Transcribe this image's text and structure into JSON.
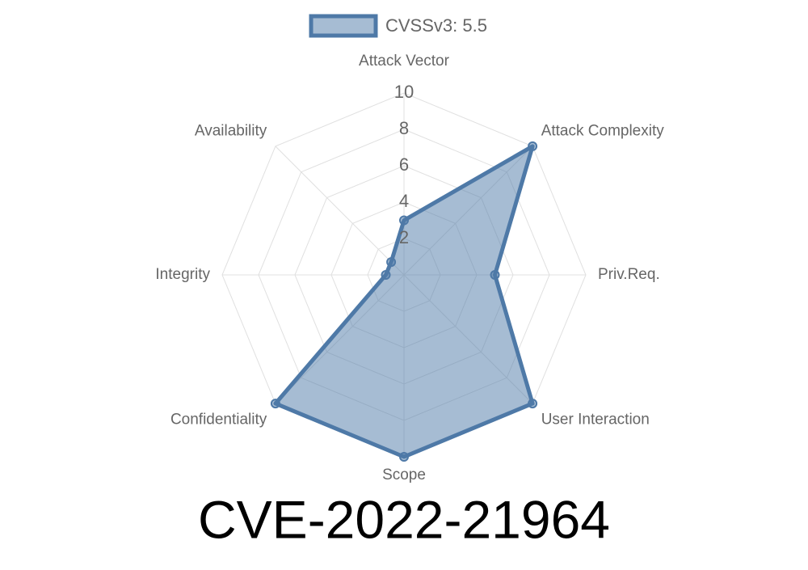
{
  "chart_data": {
    "type": "radar",
    "title": "CVE-2022-21964",
    "categories": [
      "Attack Vector",
      "Attack Complexity",
      "Priv.Req.",
      "User Interaction",
      "Scope",
      "Confidentiality",
      "Integrity",
      "Availability"
    ],
    "series": [
      {
        "name": "CVSSv3: 5.5",
        "color": "#4e79a7",
        "values": [
          3,
          10,
          5,
          10,
          10,
          10,
          1,
          1
        ]
      }
    ],
    "rlim": [
      0,
      10
    ],
    "rticks": [
      2,
      4,
      6,
      8,
      10
    ],
    "grid": true,
    "legend": "top"
  }
}
